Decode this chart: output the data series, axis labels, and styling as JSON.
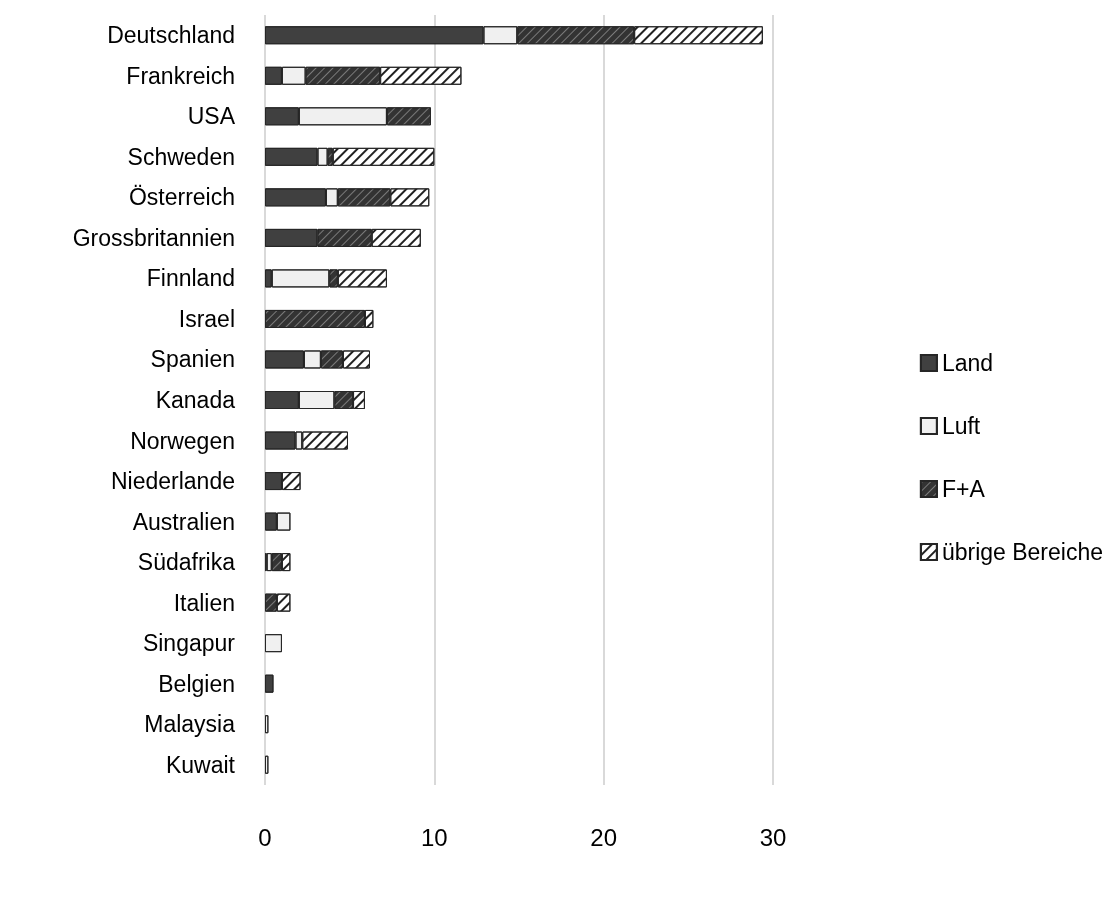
{
  "chart_data": {
    "type": "bar",
    "orientation": "horizontal",
    "stacked": true,
    "categories": [
      "Deutschland",
      "Frankreich",
      "USA",
      "Schweden",
      "Österreich",
      "Grossbritannien",
      "Finnland",
      "Israel",
      "Spanien",
      "Kanada",
      "Norwegen",
      "Niederlande",
      "Australien",
      "Südafrika",
      "Italien",
      "Singapur",
      "Belgien",
      "Malaysia",
      "Kuwait"
    ],
    "series": [
      {
        "name": "Land",
        "color": "#404040",
        "values": [
          12.9,
          1.0,
          2.0,
          3.1,
          3.6,
          3.1,
          0.4,
          0,
          2.3,
          2.0,
          1.8,
          1.0,
          0.7,
          0.1,
          0,
          0,
          0.5,
          0,
          0
        ]
      },
      {
        "name": "Luft",
        "color": "#f0f0f0",
        "values": [
          2.0,
          1.4,
          5.2,
          0.6,
          0.7,
          null,
          3.4,
          0,
          1.0,
          2.1,
          0.4,
          0,
          0.8,
          0.3,
          0,
          1.0,
          0,
          0.2,
          0.2
        ]
      },
      {
        "name": "F+A",
        "color": "#333333",
        "values": [
          6.9,
          4.4,
          2.6,
          0.3,
          3.1,
          3.2,
          0.5,
          5.9,
          1.3,
          1.1,
          0,
          0,
          0,
          0.6,
          0.7,
          0,
          0,
          0,
          0
        ]
      },
      {
        "name": "übrige Bereiche",
        "color": "#ffffff",
        "values": [
          7.6,
          4.8,
          0,
          6.0,
          2.3,
          2.9,
          2.9,
          0.5,
          1.6,
          0.7,
          2.7,
          1.1,
          0,
          0.5,
          0.8,
          0,
          0,
          0,
          0
        ]
      }
    ],
    "xlim": [
      0,
      30
    ],
    "xticks": [
      0,
      10,
      20,
      30
    ],
    "grid": "x",
    "legend": "right"
  }
}
